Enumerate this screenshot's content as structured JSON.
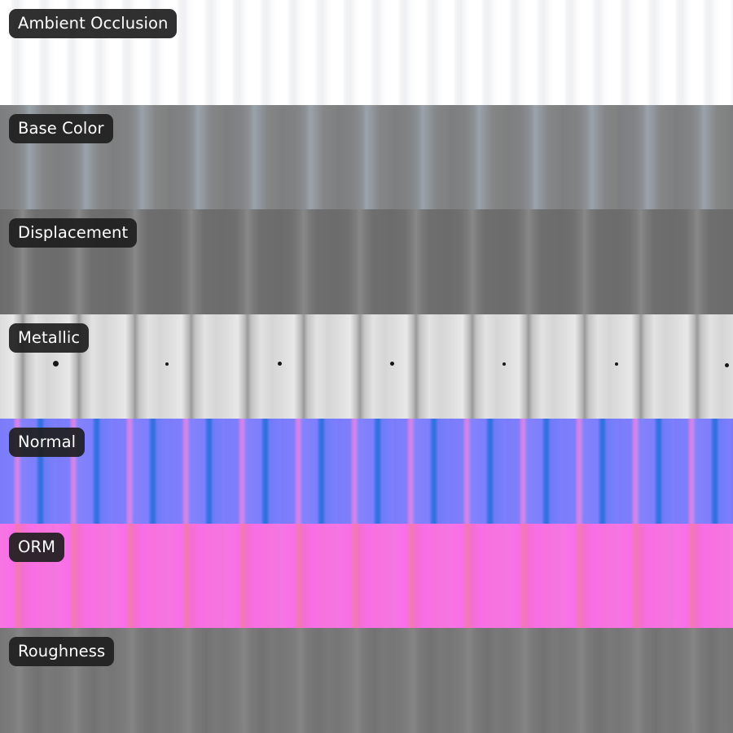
{
  "maps": [
    {
      "label": "Ambient Occlusion"
    },
    {
      "label": "Base Color"
    },
    {
      "label": "Displacement"
    },
    {
      "label": "Metallic"
    },
    {
      "label": "Normal"
    },
    {
      "label": "ORM"
    },
    {
      "label": "Roughness"
    }
  ]
}
